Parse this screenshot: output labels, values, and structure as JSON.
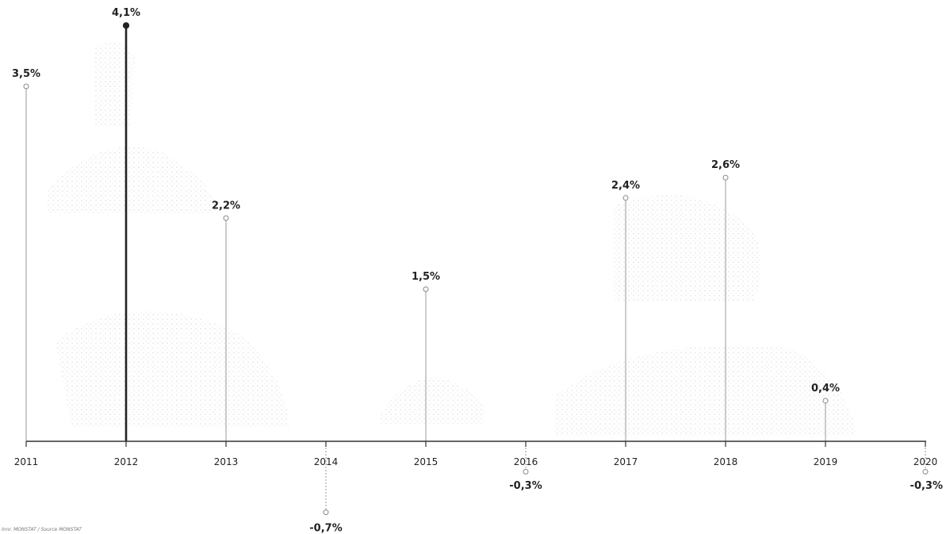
{
  "chart_data": {
    "type": "lollipop",
    "x": [
      "2011",
      "2012",
      "2013",
      "2014",
      "2015",
      "2016",
      "2017",
      "2018",
      "2019",
      "2020"
    ],
    "values": [
      3.5,
      4.1,
      2.2,
      -0.7,
      1.5,
      -0.3,
      2.4,
      2.6,
      0.4,
      -0.3
    ],
    "labels": [
      "3,5%",
      "4,1%",
      "2,2%",
      "-0,7%",
      "1,5%",
      "-0,3%",
      "2,4%",
      "2,6%",
      "0,4%",
      "-0,3%"
    ],
    "highlight_index": 1,
    "grid": false,
    "legend": "none"
  },
  "source_note": "Innr. MONSTAT / Source MONSTAT"
}
